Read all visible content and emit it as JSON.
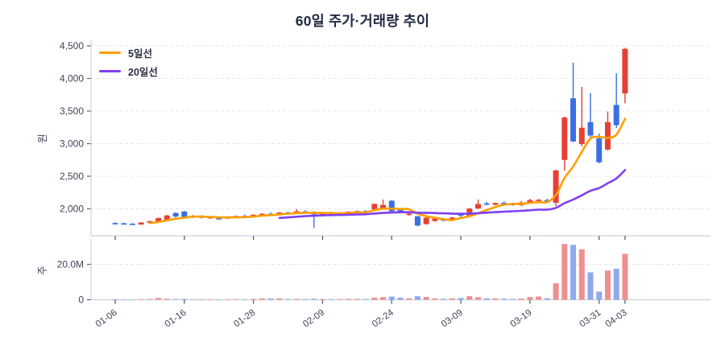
{
  "title": "60일 주가·거래량 추이",
  "colors": {
    "candle_up": "#e64035",
    "candle_down": "#3b6fe3",
    "volume_up": "#ee8f8f",
    "volume_down": "#8fa8ee",
    "ma5": "#ff9e00",
    "ma20": "#7e3ff2",
    "grid": "#e5e7ec",
    "axis_line": "#ccd1d9",
    "tick_mark": "#565e70",
    "axis_text": "#3c4557",
    "title_text": "#222b45"
  },
  "chart_data": {
    "type": "candlestick",
    "title": "60일 주가·거래량 추이",
    "price_axis": {
      "label": "원",
      "ticks": [
        2000,
        2500,
        3000,
        3500,
        4000,
        4500
      ]
    },
    "volume_axis": {
      "label": "주",
      "ticks": [
        {
          "value_millions": 20,
          "label": "20.0M"
        },
        {
          "value_millions": 0,
          "label": "0"
        }
      ]
    },
    "x_ticks": [
      {
        "index": 0,
        "label": "01-06"
      },
      {
        "index": 8,
        "label": "01-16"
      },
      {
        "index": 16,
        "label": "01-28"
      },
      {
        "index": 24,
        "label": "02-09"
      },
      {
        "index": 32,
        "label": "02-24"
      },
      {
        "index": 40,
        "label": "03-09"
      },
      {
        "index": 48,
        "label": "03-19"
      },
      {
        "index": 56,
        "label": "03-31"
      },
      {
        "index": 59,
        "label": "04-03"
      }
    ],
    "ma_lines": [
      {
        "name": "5일선",
        "window": 5,
        "color": "#ff9e00"
      },
      {
        "name": "20일선",
        "window": 20,
        "color": "#7e3ff2"
      }
    ],
    "columns": [
      "open",
      "high",
      "low",
      "close",
      "volume_millions"
    ],
    "candles": [
      [
        1782,
        1796,
        1768,
        1775,
        0.3
      ],
      [
        1778,
        1788,
        1760,
        1770,
        0.25
      ],
      [
        1772,
        1782,
        1752,
        1762,
        0.25
      ],
      [
        1760,
        1796,
        1754,
        1790,
        0.3
      ],
      [
        1790,
        1818,
        1782,
        1810,
        0.4
      ],
      [
        1796,
        1866,
        1790,
        1858,
        1.0
      ],
      [
        1830,
        1906,
        1822,
        1898,
        0.55
      ],
      [
        1936,
        1948,
        1868,
        1882,
        0.45
      ],
      [
        1958,
        1970,
        1860,
        1872,
        0.5
      ],
      [
        1880,
        1906,
        1858,
        1890,
        0.3
      ],
      [
        1896,
        1902,
        1852,
        1862,
        0.3
      ],
      [
        1860,
        1882,
        1846,
        1874,
        0.3
      ],
      [
        1856,
        1872,
        1840,
        1848,
        0.25
      ],
      [
        1850,
        1880,
        1844,
        1872,
        0.3
      ],
      [
        1874,
        1896,
        1862,
        1890,
        0.35
      ],
      [
        1892,
        1912,
        1874,
        1880,
        0.3
      ],
      [
        1884,
        1916,
        1878,
        1910,
        0.5
      ],
      [
        1910,
        1932,
        1896,
        1924,
        0.8
      ],
      [
        1924,
        1946,
        1904,
        1912,
        0.7
      ],
      [
        1916,
        1952,
        1910,
        1944,
        0.8
      ],
      [
        1942,
        1960,
        1922,
        1930,
        0.4
      ],
      [
        1932,
        1994,
        1926,
        1962,
        0.5
      ],
      [
        1960,
        1978,
        1938,
        1948,
        0.4
      ],
      [
        1950,
        1966,
        1706,
        1914,
        0.6
      ],
      [
        1916,
        1942,
        1900,
        1934,
        0.4
      ],
      [
        1932,
        1956,
        1916,
        1924,
        0.35
      ],
      [
        1926,
        1950,
        1912,
        1942,
        0.4
      ],
      [
        1944,
        1964,
        1930,
        1956,
        0.5
      ],
      [
        1954,
        1974,
        1940,
        1966,
        0.5
      ],
      [
        1968,
        1982,
        1946,
        1954,
        0.4
      ],
      [
        1992,
        2084,
        1986,
        2074,
        1.2
      ],
      [
        1996,
        2144,
        1990,
        2060,
        1.5
      ],
      [
        2124,
        2136,
        1950,
        1962,
        1.8
      ],
      [
        1998,
        2012,
        1930,
        1940,
        1.2
      ],
      [
        1908,
        1960,
        1894,
        1926,
        0.8
      ],
      [
        1886,
        1892,
        1732,
        1744,
        2.0
      ],
      [
        1766,
        1872,
        1756,
        1864,
        1.6
      ],
      [
        1814,
        1860,
        1800,
        1850,
        0.8
      ],
      [
        1844,
        1854,
        1806,
        1820,
        0.6
      ],
      [
        1824,
        1876,
        1816,
        1866,
        0.8
      ],
      [
        1914,
        1930,
        1860,
        1898,
        1.0
      ],
      [
        1896,
        2014,
        1888,
        2004,
        2.0
      ],
      [
        2006,
        2144,
        1994,
        2074,
        1.5
      ],
      [
        2084,
        2106,
        2052,
        2068,
        0.8
      ],
      [
        2062,
        2096,
        2054,
        2090,
        0.8
      ],
      [
        2092,
        2114,
        2072,
        2080,
        0.6
      ],
      [
        2076,
        2094,
        2048,
        2056,
        0.5
      ],
      [
        2054,
        2122,
        2046,
        2096,
        0.7
      ],
      [
        2088,
        2154,
        2080,
        2134,
        1.5
      ],
      [
        2126,
        2150,
        2096,
        2140,
        1.8
      ],
      [
        2134,
        2156,
        2086,
        2098,
        0.9
      ],
      [
        2094,
        2600,
        2042,
        2590,
        9.3
      ],
      [
        2750,
        3414,
        2586,
        3400,
        31.5
      ],
      [
        3696,
        4244,
        3024,
        3034,
        31.0
      ],
      [
        2994,
        3870,
        2958,
        3244,
        28.5
      ],
      [
        3330,
        3774,
        3098,
        3124,
        15.5
      ],
      [
        3080,
        3154,
        2700,
        2714,
        4.6
      ],
      [
        2910,
        3494,
        2892,
        3330,
        16.5
      ],
      [
        3594,
        4080,
        3240,
        3284,
        17.5
      ],
      [
        3770,
        4470,
        3620,
        4454,
        26.0
      ]
    ]
  }
}
